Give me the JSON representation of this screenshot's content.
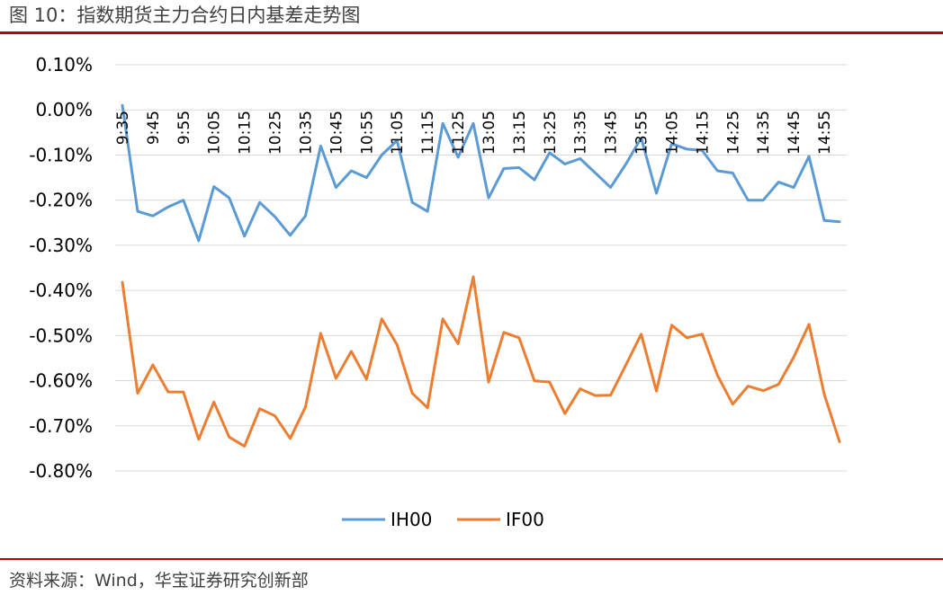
{
  "header": {
    "title": "图 10：指数期货主力合约日内基差走势图"
  },
  "footer": {
    "source": "资料来源：Wind，华宝证券研究创新部"
  },
  "chart_data": {
    "type": "line",
    "title": "",
    "xlabel": "",
    "ylabel": "",
    "ylim": [
      -0.8,
      0.1
    ],
    "y_tick_labels": [
      "0.10%",
      "0.00%",
      "-0.10%",
      "-0.20%",
      "-0.30%",
      "-0.40%",
      "-0.50%",
      "-0.60%",
      "-0.70%",
      "-0.80%"
    ],
    "y_tick_values": [
      0.1,
      0.0,
      -0.1,
      -0.2,
      -0.3,
      -0.4,
      -0.5,
      -0.6,
      -0.7,
      -0.8
    ],
    "x_tick_labels": [
      "9:35",
      "9:45",
      "9:55",
      "10:05",
      "10:15",
      "10:25",
      "10:35",
      "10:45",
      "10:55",
      "11:05",
      "11:15",
      "11:25",
      "13:05",
      "13:15",
      "13:25",
      "13:35",
      "13:45",
      "13:55",
      "14:05",
      "14:15",
      "14:25",
      "14:35",
      "14:45",
      "14:55"
    ],
    "x_tick_step": 2,
    "grid": "horizontal",
    "legend_position": "bottom",
    "series": [
      {
        "name": "IH00",
        "color": "#5b9bd5",
        "values": [
          0.01,
          -0.225,
          -0.235,
          -0.215,
          -0.2,
          -0.29,
          -0.17,
          -0.195,
          -0.28,
          -0.205,
          -0.237,
          -0.278,
          -0.235,
          -0.08,
          -0.172,
          -0.135,
          -0.15,
          -0.1,
          -0.068,
          -0.205,
          -0.225,
          -0.03,
          -0.105,
          -0.03,
          -0.195,
          -0.13,
          -0.128,
          -0.155,
          -0.095,
          -0.12,
          -0.108,
          -0.14,
          -0.172,
          -0.12,
          -0.062,
          -0.185,
          -0.075,
          -0.087,
          -0.09,
          -0.135,
          -0.14,
          -0.2,
          -0.2,
          -0.16,
          -0.172,
          -0.103,
          -0.245,
          -0.248
        ]
      },
      {
        "name": "IF00",
        "color": "#ed7d31",
        "values": [
          -0.382,
          -0.628,
          -0.565,
          -0.625,
          -0.625,
          -0.73,
          -0.647,
          -0.725,
          -0.745,
          -0.662,
          -0.678,
          -0.728,
          -0.658,
          -0.495,
          -0.595,
          -0.535,
          -0.597,
          -0.463,
          -0.52,
          -0.628,
          -0.66,
          -0.463,
          -0.518,
          -0.37,
          -0.603,
          -0.493,
          -0.505,
          -0.6,
          -0.603,
          -0.673,
          -0.618,
          -0.633,
          -0.632,
          -0.565,
          -0.497,
          -0.623,
          -0.477,
          -0.505,
          -0.497,
          -0.588,
          -0.652,
          -0.612,
          -0.622,
          -0.608,
          -0.548,
          -0.475,
          -0.63,
          -0.735
        ]
      }
    ]
  }
}
